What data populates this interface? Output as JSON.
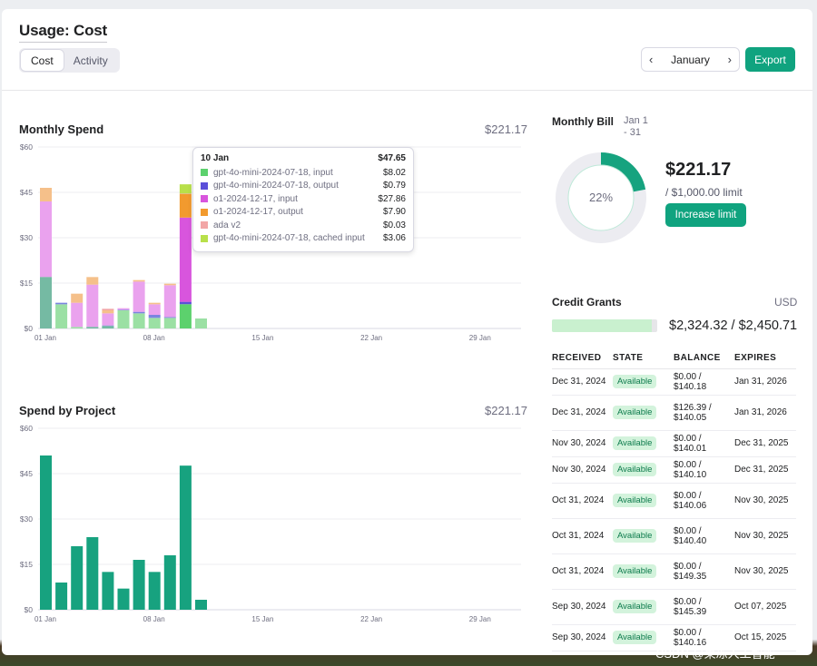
{
  "header": {
    "title": "Usage: Cost",
    "tabs": [
      {
        "label": "Cost",
        "active": true
      },
      {
        "label": "Activity",
        "active": false
      }
    ],
    "month": "January",
    "export_label": "Export"
  },
  "monthly_spend": {
    "title": "Monthly Spend",
    "total": "$221.17",
    "chart_data": {
      "type": "bar",
      "stacked": true,
      "ylim": [
        0,
        60
      ],
      "yticks": [
        "$60",
        "$45",
        "$30",
        "$15",
        "$0"
      ],
      "xticks": [
        "01 Jan",
        "08 Jan",
        "15 Jan",
        "22 Jan",
        "29 Jan"
      ],
      "days": [
        1,
        2,
        3,
        4,
        5,
        6,
        7,
        8,
        9,
        10,
        11
      ],
      "series": [
        {
          "name": "gpt-4o-mini-2024-07-18, input",
          "color": "#9be0a4",
          "values": [
            17,
            8,
            0.5,
            0.5,
            0.8,
            6,
            5,
            3.5,
            3.5,
            8.02,
            3.3
          ]
        },
        {
          "name": "gpt-4o-mini-2024-07-18, output",
          "color": "#7b84e0",
          "values": [
            0,
            0.5,
            0,
            0,
            0.2,
            0.2,
            0.5,
            1,
            0.3,
            0.79,
            0
          ]
        },
        {
          "name": "o1-2024-12-17, input",
          "color": "#eaa2ee",
          "values": [
            25,
            0,
            8,
            14,
            4,
            0.5,
            10,
            3.5,
            10.5,
            27.86,
            0
          ]
        },
        {
          "name": "o1-2024-12-17, output",
          "color": "#f5c08a",
          "values": [
            4.5,
            0,
            3,
            2.5,
            1,
            0,
            0.5,
            0.5,
            0.5,
            7.9,
            0
          ]
        },
        {
          "name": "ada v2",
          "color": "#f2a6a6",
          "values": [
            0,
            0,
            0,
            0,
            0.5,
            0,
            0,
            0,
            0,
            0.03,
            0
          ]
        },
        {
          "name": "gpt-4o-mini-2024-07-18, cached input",
          "color": "#c7e86f",
          "values": [
            0,
            0,
            0,
            0,
            0,
            0,
            0,
            0,
            0,
            3.06,
            0
          ]
        }
      ],
      "overlay": {
        "name": "",
        "color": "#6fb3a3",
        "values": [
          17,
          0,
          0,
          0.5,
          0.8,
          0,
          0,
          0,
          0,
          0,
          0
        ]
      },
      "highlight_day": 10
    },
    "tooltip": {
      "date": "10 Jan",
      "total": "$47.65",
      "rows": [
        {
          "color": "#5cd16d",
          "label": "gpt-4o-mini-2024-07-18, input",
          "value": "$8.02"
        },
        {
          "color": "#5b4fd9",
          "label": "gpt-4o-mini-2024-07-18, output",
          "value": "$0.79"
        },
        {
          "color": "#d855dd",
          "label": "o1-2024-12-17, input",
          "value": "$27.86"
        },
        {
          "color": "#f29a2e",
          "label": "o1-2024-12-17, output",
          "value": "$7.90"
        },
        {
          "color": "#f2a6a6",
          "label": "ada v2",
          "value": "$0.03"
        },
        {
          "color": "#b8e04a",
          "label": "gpt-4o-mini-2024-07-18, cached input",
          "value": "$3.06"
        }
      ]
    }
  },
  "spend_by_project": {
    "title": "Spend by Project",
    "total": "$221.17",
    "chart_data": {
      "type": "bar",
      "ylim": [
        0,
        60
      ],
      "yticks": [
        "$60",
        "$45",
        "$30",
        "$15",
        "$0"
      ],
      "xticks": [
        "01 Jan",
        "08 Jan",
        "15 Jan",
        "22 Jan",
        "29 Jan"
      ],
      "days": [
        1,
        2,
        3,
        4,
        5,
        6,
        7,
        8,
        9,
        10,
        11
      ],
      "values": [
        51,
        9,
        21,
        24,
        12.5,
        7,
        16.5,
        12.5,
        18,
        47.65,
        3.3
      ],
      "color": "#17a27f"
    }
  },
  "monthly_bill": {
    "title": "Monthly Bill",
    "range": "Jan 1 - 31",
    "percent_label": "22%",
    "percent": 22,
    "amount": "$221.17",
    "limit": "/ $1,000.00 limit",
    "increase_label": "Increase limit"
  },
  "credit_grants": {
    "title": "Credit Grants",
    "currency": "USD",
    "fill_fraction": 0.95,
    "amount": "$2,324.32 / $2,450.71",
    "columns": [
      "RECEIVED",
      "STATE",
      "BALANCE",
      "EXPIRES"
    ],
    "rows": [
      {
        "received": "Dec 31, 2024",
        "state": "Available",
        "balance": "$0.00 / $140.18",
        "expires": "Jan 31, 2026"
      },
      {
        "received": "Dec 31, 2024",
        "state": "Available",
        "balance": "$126.39 / $140.05",
        "expires": "Jan 31, 2026"
      },
      {
        "received": "Nov 30, 2024",
        "state": "Available",
        "balance": "$0.00 / $140.01",
        "expires": "Dec 31, 2025"
      },
      {
        "received": "Nov 30, 2024",
        "state": "Available",
        "balance": "$0.00 / $140.10",
        "expires": "Dec 31, 2025"
      },
      {
        "received": "Oct 31, 2024",
        "state": "Available",
        "balance": "$0.00 / $140.06",
        "expires": "Nov 30, 2025"
      },
      {
        "received": "Oct 31, 2024",
        "state": "Available",
        "balance": "$0.00 / $140.40",
        "expires": "Nov 30, 2025"
      },
      {
        "received": "Oct 31, 2024",
        "state": "Available",
        "balance": "$0.00 / $149.35",
        "expires": "Nov 30, 2025"
      },
      {
        "received": "Sep 30, 2024",
        "state": "Available",
        "balance": "$0.00 / $145.39",
        "expires": "Oct 07, 2025"
      },
      {
        "received": "Sep 30, 2024",
        "state": "Available",
        "balance": "$0.00 / $140.16",
        "expires": "Oct 15, 2025"
      }
    ]
  },
  "watermark": "CSDN @果冻人工智能"
}
